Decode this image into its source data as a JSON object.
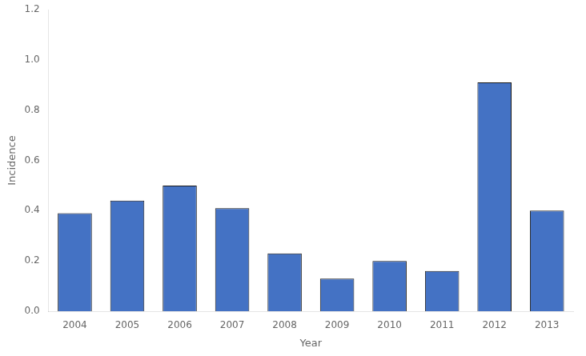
{
  "chart_data": {
    "type": "bar",
    "categories": [
      "2004",
      "2005",
      "2006",
      "2007",
      "2008",
      "2009",
      "2010",
      "2011",
      "2012",
      "2013"
    ],
    "values": [
      0.39,
      0.44,
      0.5,
      0.41,
      0.23,
      0.13,
      0.2,
      0.16,
      0.91,
      0.4
    ],
    "color": "#4472C4",
    "xlabel": "Year",
    "ylabel": "Incidence",
    "ylim": [
      0.0,
      1.2
    ],
    "yticks": [
      {
        "value": 0.0,
        "label": "0.0"
      },
      0.2,
      0.4,
      0.6,
      0.8,
      {
        "value": 1.0,
        "label": "1.0"
      },
      1.2
    ],
    "grid": false
  }
}
